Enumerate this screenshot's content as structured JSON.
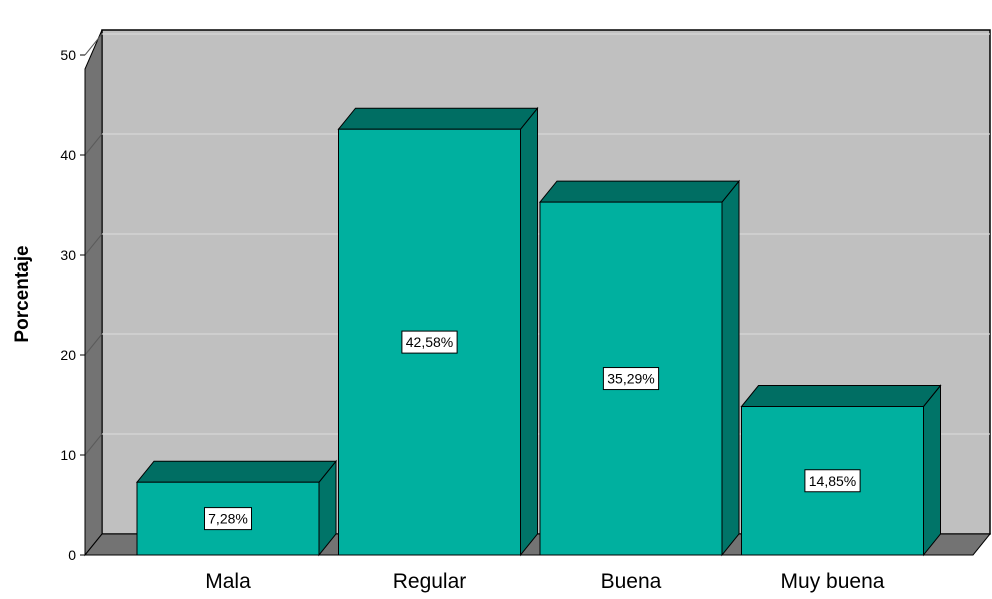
{
  "chart_data": {
    "type": "bar",
    "title": "",
    "xlabel": "",
    "ylabel": "Porcentaje",
    "ylim": [
      0,
      50
    ],
    "yticks": [
      0,
      10,
      20,
      30,
      40,
      50
    ],
    "grid": true,
    "categories": [
      "Mala",
      "Regular",
      "Buena",
      "Muy buena"
    ],
    "values": [
      7.28,
      42.58,
      35.29,
      14.85
    ],
    "data_labels": [
      "7,28%",
      "42,58%",
      "35,29%",
      "14,85%"
    ]
  },
  "colors": {
    "bar_front": "#00B09F",
    "bar_top": "#006E63",
    "bar_side": "#007468",
    "wall": "#C0C0C0",
    "floor_side": "#737373",
    "gridline": "#D6D6D6"
  }
}
